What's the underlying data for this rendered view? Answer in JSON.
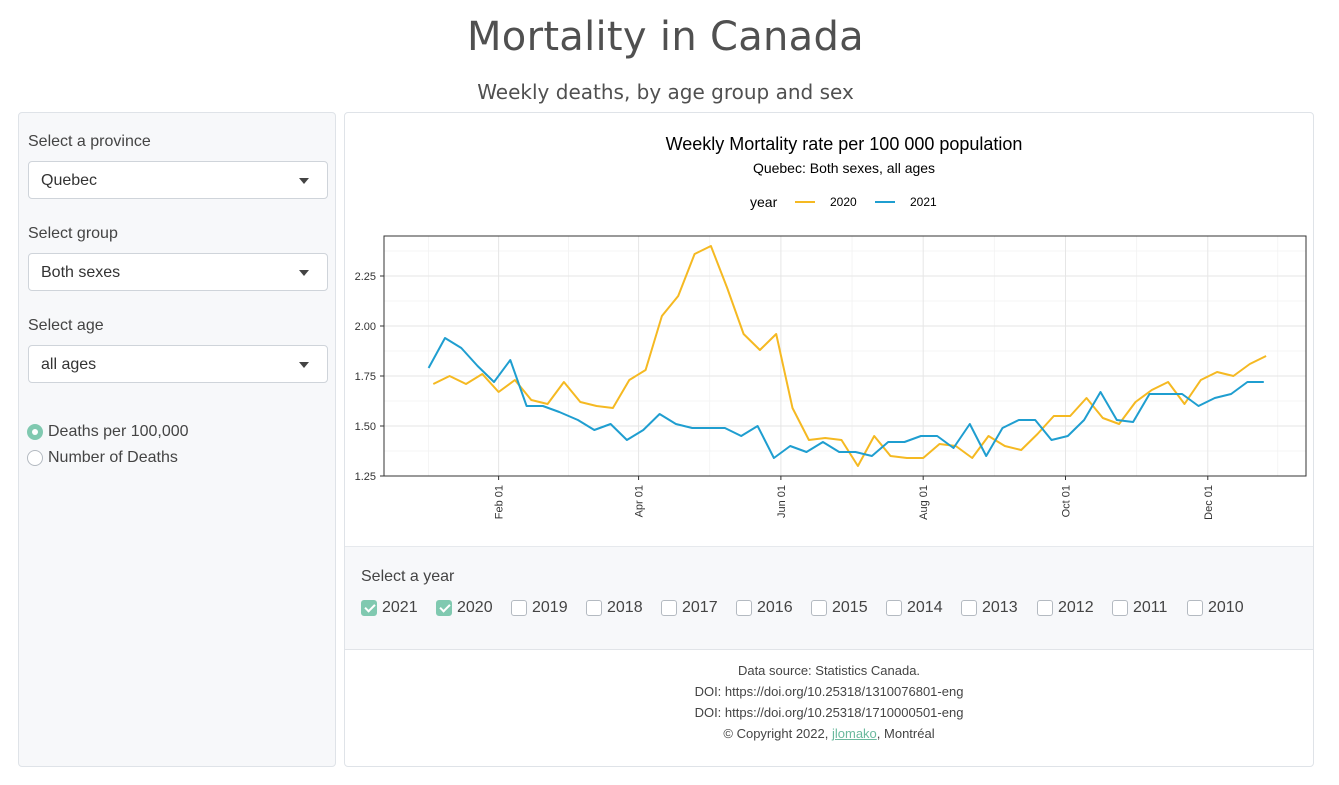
{
  "header": {
    "title": "Mortality in Canada",
    "subtitle": "Weekly deaths, by age group and sex"
  },
  "sidebar": {
    "province_label": "Select a province",
    "province_value": "Quebec",
    "group_label": "Select group",
    "group_value": "Both sexes",
    "age_label": "Select age",
    "age_value": "all ages",
    "measure_options": [
      {
        "label": "Deaths per 100,000",
        "checked": true
      },
      {
        "label": "Number of Deaths",
        "checked": false
      }
    ]
  },
  "chart_data": {
    "type": "line",
    "title": "Weekly Mortality rate per 100 000 population",
    "subtitle": "Quebec: Both sexes, all ages",
    "legend_title": "year",
    "legend_position": "top",
    "xlabel": "",
    "ylabel": "",
    "x_ticks": [
      "Feb 01",
      "Apr 01",
      "Jun 01",
      "Aug 01",
      "Oct 01",
      "Dec 01"
    ],
    "y_ticks": [
      "1.25",
      "1.50",
      "1.75",
      "2.00",
      "2.25"
    ],
    "ylim": [
      1.25,
      2.45
    ],
    "grid": true,
    "series": [
      {
        "name": "2020",
        "color": "#f5b922",
        "x": [
          "Jan 04",
          "Jan 11",
          "Jan 18",
          "Jan 25",
          "Feb 01",
          "Feb 08",
          "Feb 15",
          "Feb 22",
          "Feb 29",
          "Mar 07",
          "Mar 14",
          "Mar 21",
          "Mar 28",
          "Apr 04",
          "Apr 11",
          "Apr 18",
          "Apr 25",
          "May 02",
          "May 09",
          "May 16",
          "May 23",
          "May 30",
          "Jun 06",
          "Jun 13",
          "Jun 20",
          "Jun 27",
          "Jul 04",
          "Jul 11",
          "Jul 18",
          "Jul 25",
          "Aug 01",
          "Aug 08",
          "Aug 15",
          "Aug 22",
          "Aug 29",
          "Sep 05",
          "Sep 12",
          "Sep 19",
          "Sep 26",
          "Oct 03",
          "Oct 10",
          "Oct 17",
          "Oct 24",
          "Oct 31",
          "Nov 07",
          "Nov 14",
          "Nov 21",
          "Nov 28",
          "Dec 05",
          "Dec 12",
          "Dec 19",
          "Dec 26"
        ],
        "values": [
          1.71,
          1.75,
          1.71,
          1.76,
          1.67,
          1.73,
          1.63,
          1.61,
          1.72,
          1.62,
          1.6,
          1.59,
          1.73,
          1.78,
          2.05,
          2.15,
          2.36,
          2.4,
          2.19,
          1.96,
          1.88,
          1.96,
          1.59,
          1.43,
          1.44,
          1.43,
          1.3,
          1.45,
          1.35,
          1.34,
          1.34,
          1.41,
          1.4,
          1.34,
          1.45,
          1.4,
          1.38,
          1.46,
          1.55,
          1.55,
          1.64,
          1.54,
          1.51,
          1.62,
          1.68,
          1.72,
          1.61,
          1.73,
          1.77,
          1.75,
          1.81,
          1.85
        ]
      },
      {
        "name": "2021",
        "color": "#1f9ed0",
        "x": [
          "Jan 02",
          "Jan 09",
          "Jan 16",
          "Jan 23",
          "Jan 30",
          "Feb 06",
          "Feb 13",
          "Feb 20",
          "Feb 27",
          "Mar 06",
          "Mar 13",
          "Mar 20",
          "Mar 27",
          "Apr 03",
          "Apr 10",
          "Apr 17",
          "Apr 24",
          "May 01",
          "May 08",
          "May 15",
          "May 22",
          "May 29",
          "Jun 05",
          "Jun 12",
          "Jun 19",
          "Jun 26",
          "Jul 03",
          "Jul 10",
          "Jul 17",
          "Jul 24",
          "Jul 31",
          "Aug 07",
          "Aug 14",
          "Aug 21",
          "Aug 28",
          "Sep 04",
          "Sep 11",
          "Sep 18",
          "Sep 25",
          "Oct 02",
          "Oct 09",
          "Oct 16",
          "Oct 23",
          "Oct 30",
          "Nov 06",
          "Nov 13",
          "Nov 20",
          "Nov 27",
          "Dec 04",
          "Dec 11",
          "Dec 18",
          "Dec 25"
        ],
        "values": [
          1.79,
          1.94,
          1.89,
          1.8,
          1.72,
          1.83,
          1.6,
          1.6,
          1.57,
          1.53,
          1.48,
          1.51,
          1.43,
          1.48,
          1.56,
          1.51,
          1.49,
          1.49,
          1.49,
          1.45,
          1.5,
          1.34,
          1.4,
          1.37,
          1.42,
          1.37,
          1.37,
          1.35,
          1.42,
          1.42,
          1.45,
          1.45,
          1.39,
          1.51,
          1.35,
          1.49,
          1.53,
          1.53,
          1.43,
          1.45,
          1.53,
          1.67,
          1.53,
          1.52,
          1.66,
          1.66,
          1.66,
          1.6,
          1.64,
          1.66,
          1.72,
          1.72
        ]
      }
    ]
  },
  "year_selector": {
    "label": "Select a year",
    "years": [
      {
        "label": "2021",
        "checked": true
      },
      {
        "label": "2020",
        "checked": true
      },
      {
        "label": "2019",
        "checked": false
      },
      {
        "label": "2018",
        "checked": false
      },
      {
        "label": "2017",
        "checked": false
      },
      {
        "label": "2016",
        "checked": false
      },
      {
        "label": "2015",
        "checked": false
      },
      {
        "label": "2014",
        "checked": false
      },
      {
        "label": "2013",
        "checked": false
      },
      {
        "label": "2012",
        "checked": false
      },
      {
        "label": "2011",
        "checked": false
      },
      {
        "label": "2010",
        "checked": false
      }
    ]
  },
  "footer": {
    "source": "Data source: Statistics Canada.",
    "doi1": "DOI: https://doi.org/10.25318/1310076801-eng",
    "doi2": "DOI: https://doi.org/10.25318/1710000501-eng",
    "copyright_prefix": "© Copyright 2022, ",
    "author_link": "jlomako",
    "copyright_suffix": ", Montréal"
  }
}
